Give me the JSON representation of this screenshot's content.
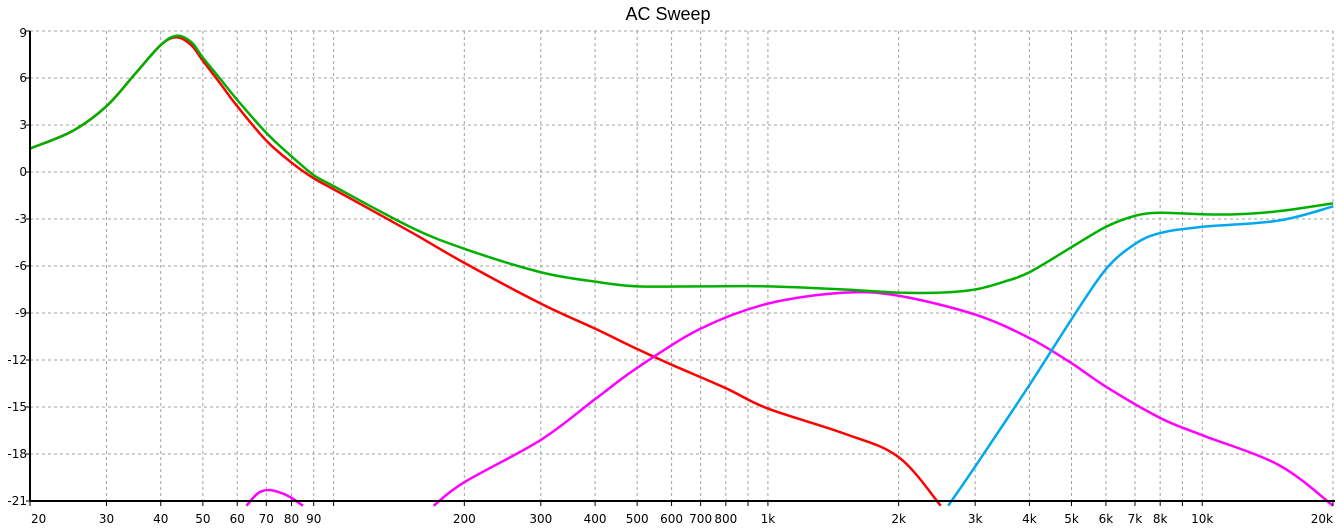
{
  "chart_data": {
    "type": "line",
    "title": "AC Sweep",
    "xlabel": "",
    "ylabel": "",
    "xscale": "log",
    "xlim": [
      20,
      20000
    ],
    "ylim": [
      -21,
      9
    ],
    "grid": true,
    "x_ticks": [
      {
        "v": 20,
        "label": "20"
      },
      {
        "v": 30,
        "label": "30"
      },
      {
        "v": 40,
        "label": "40"
      },
      {
        "v": 50,
        "label": "50"
      },
      {
        "v": 60,
        "label": "60"
      },
      {
        "v": 70,
        "label": "70"
      },
      {
        "v": 80,
        "label": "80"
      },
      {
        "v": 90,
        "label": "90"
      },
      {
        "v": 100,
        "label": ""
      },
      {
        "v": 200,
        "label": "200"
      },
      {
        "v": 300,
        "label": "300"
      },
      {
        "v": 400,
        "label": "400"
      },
      {
        "v": 500,
        "label": "500"
      },
      {
        "v": 600,
        "label": "600"
      },
      {
        "v": 700,
        "label": "700"
      },
      {
        "v": 800,
        "label": "800"
      },
      {
        "v": 900,
        "label": ""
      },
      {
        "v": 1000,
        "label": "1k"
      },
      {
        "v": 2000,
        "label": "2k"
      },
      {
        "v": 3000,
        "label": "3k"
      },
      {
        "v": 4000,
        "label": "4k"
      },
      {
        "v": 5000,
        "label": "5k"
      },
      {
        "v": 6000,
        "label": "6k"
      },
      {
        "v": 7000,
        "label": "7k"
      },
      {
        "v": 8000,
        "label": "8k"
      },
      {
        "v": 9000,
        "label": ""
      },
      {
        "v": 10000,
        "label": "10k"
      },
      {
        "v": 20000,
        "label": "20k"
      }
    ],
    "y_ticks": [
      "9",
      "6",
      "3",
      "0",
      "-3",
      "-6",
      "-9",
      "-12",
      "-15",
      "-18",
      "-21"
    ],
    "series": [
      {
        "color": "#ff0000",
        "points": [
          [
            20,
            1.5
          ],
          [
            25,
            2.6
          ],
          [
            30,
            4.2
          ],
          [
            35,
            6.3
          ],
          [
            40,
            8.1
          ],
          [
            43.5,
            8.6
          ],
          [
            47,
            8.1
          ],
          [
            50,
            7.1
          ],
          [
            55,
            5.6
          ],
          [
            60,
            4.2
          ],
          [
            70,
            2.0
          ],
          [
            80,
            0.6
          ],
          [
            90,
            -0.4
          ],
          [
            100,
            -1.1
          ],
          [
            150,
            -3.8
          ],
          [
            200,
            -5.8
          ],
          [
            300,
            -8.4
          ],
          [
            400,
            -10.0
          ],
          [
            500,
            -11.3
          ],
          [
            600,
            -12.3
          ],
          [
            800,
            -13.8
          ],
          [
            1000,
            -15.1
          ],
          [
            1500,
            -16.7
          ],
          [
            2000,
            -18.2
          ],
          [
            2500,
            -21.3
          ]
        ]
      },
      {
        "color": "#ff00ff",
        "points": [
          [
            63,
            -21.3
          ],
          [
            67,
            -20.5
          ],
          [
            71,
            -20.3
          ],
          [
            76,
            -20.5
          ],
          [
            80,
            -20.8
          ],
          [
            85,
            -21.3
          ]
        ]
      },
      {
        "color": "#ff00ff",
        "points": [
          [
            170,
            -21.3
          ],
          [
            200,
            -19.8
          ],
          [
            300,
            -17.1
          ],
          [
            400,
            -14.5
          ],
          [
            500,
            -12.5
          ],
          [
            700,
            -10.0
          ],
          [
            1000,
            -8.4
          ],
          [
            1500,
            -7.7
          ],
          [
            2000,
            -7.9
          ],
          [
            3000,
            -9.1
          ],
          [
            4000,
            -10.6
          ],
          [
            5000,
            -12.2
          ],
          [
            6000,
            -13.7
          ],
          [
            8000,
            -15.7
          ],
          [
            10000,
            -16.8
          ],
          [
            15000,
            -18.7
          ],
          [
            20000,
            -21.3
          ]
        ]
      },
      {
        "color": "#00a8f0",
        "points": [
          [
            2600,
            -21.3
          ],
          [
            3000,
            -18.8
          ],
          [
            4000,
            -13.6
          ],
          [
            5000,
            -9.4
          ],
          [
            6000,
            -6.2
          ],
          [
            7000,
            -4.6
          ],
          [
            8000,
            -3.9
          ],
          [
            10000,
            -3.5
          ],
          [
            15000,
            -3.1
          ],
          [
            20000,
            -2.2
          ]
        ]
      },
      {
        "color": "#00b000",
        "points": [
          [
            20,
            1.5
          ],
          [
            25,
            2.6
          ],
          [
            30,
            4.2
          ],
          [
            35,
            6.3
          ],
          [
            40,
            8.1
          ],
          [
            43.5,
            8.7
          ],
          [
            47,
            8.3
          ],
          [
            50,
            7.3
          ],
          [
            55,
            5.9
          ],
          [
            60,
            4.6
          ],
          [
            70,
            2.5
          ],
          [
            80,
            1.0
          ],
          [
            90,
            -0.2
          ],
          [
            100,
            -0.9
          ],
          [
            150,
            -3.5
          ],
          [
            200,
            -4.9
          ],
          [
            300,
            -6.4
          ],
          [
            400,
            -7.0
          ],
          [
            500,
            -7.3
          ],
          [
            700,
            -7.3
          ],
          [
            1000,
            -7.3
          ],
          [
            1500,
            -7.5
          ],
          [
            2000,
            -7.7
          ],
          [
            2500,
            -7.7
          ],
          [
            3000,
            -7.5
          ],
          [
            3500,
            -7.0
          ],
          [
            4000,
            -6.4
          ],
          [
            5000,
            -4.8
          ],
          [
            6000,
            -3.5
          ],
          [
            7000,
            -2.8
          ],
          [
            8000,
            -2.6
          ],
          [
            10000,
            -2.7
          ],
          [
            12000,
            -2.7
          ],
          [
            15000,
            -2.5
          ],
          [
            20000,
            -2.0
          ]
        ]
      }
    ]
  }
}
